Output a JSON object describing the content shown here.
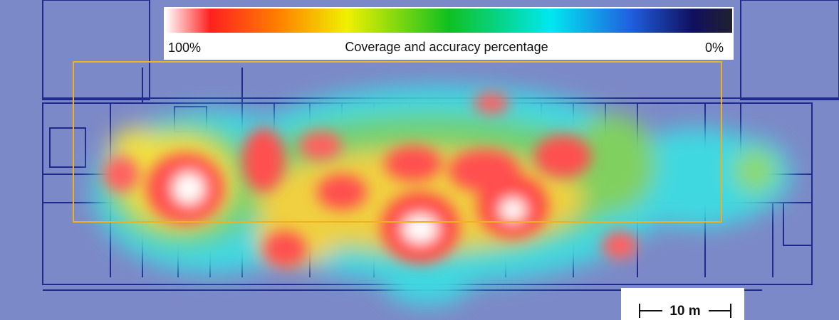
{
  "legend": {
    "max_label": "100%",
    "title": "Coverage and accuracy percentage",
    "min_label": "0%"
  },
  "scale_bar": {
    "label": "10 m"
  }
}
